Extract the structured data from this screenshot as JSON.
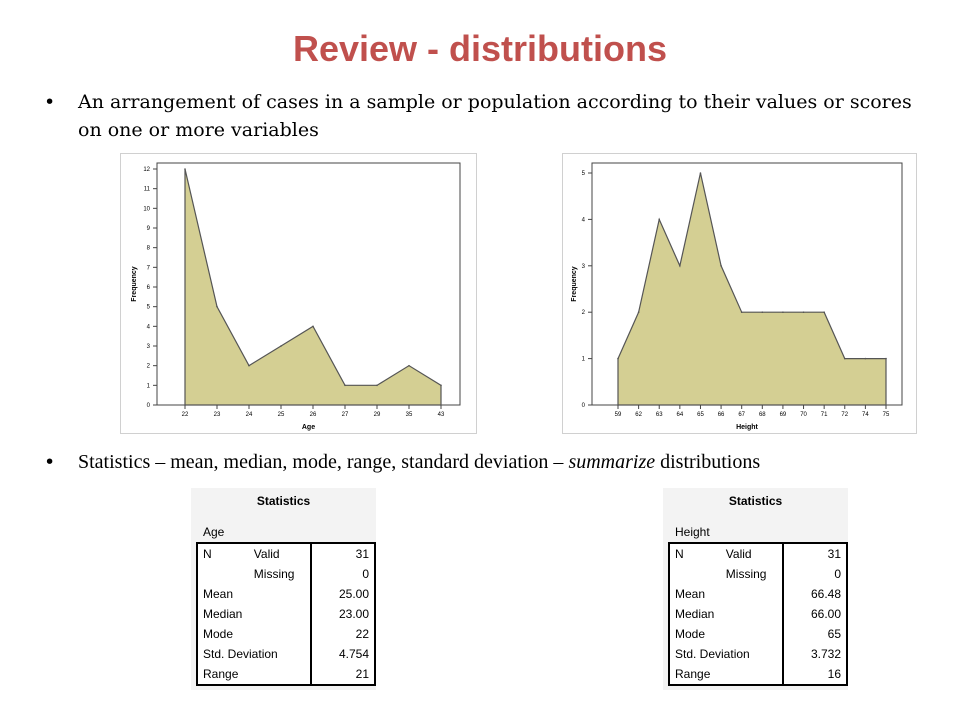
{
  "slide": {
    "title": "Review - distributions",
    "bullet1": "An arrangement of cases in a sample or population according to their values or scores on one or more variables",
    "bullet2_pre": "Statistics – mean, median, mode, range, standard deviation – ",
    "bullet2_em": "summarize",
    "bullet2_post": " distributions",
    "bullet_symbol": "•"
  },
  "chart_data": [
    {
      "type": "area",
      "xlabel": "Age",
      "ylabel": "Frequency",
      "categories": [
        "22",
        "23",
        "24",
        "25",
        "26",
        "27",
        "29",
        "35",
        "43"
      ],
      "values": [
        12,
        5,
        2,
        3,
        4,
        1,
        1,
        2,
        1
      ],
      "ylim": [
        0,
        12
      ],
      "yticks": [
        0,
        1,
        2,
        3,
        4,
        5,
        6,
        7,
        8,
        9,
        10,
        11,
        12
      ],
      "fill": "#d4cf93",
      "grid": false
    },
    {
      "type": "area",
      "xlabel": "Height",
      "ylabel": "Frequency",
      "categories": [
        "59",
        "62",
        "63",
        "64",
        "65",
        "66",
        "67",
        "68",
        "69",
        "70",
        "71",
        "72",
        "74",
        "75"
      ],
      "values": [
        1,
        2,
        4,
        3,
        5,
        3,
        2,
        2,
        2,
        2,
        2,
        1,
        1,
        1
      ],
      "ylim": [
        0,
        5
      ],
      "yticks": [
        0,
        1,
        2,
        3,
        4,
        5
      ],
      "fill": "#d4cf93",
      "grid": false
    }
  ],
  "stats_age": {
    "title": "Statistics",
    "variable": "Age",
    "rows": [
      {
        "c1": "N",
        "c2": "Valid",
        "c3": "31"
      },
      {
        "c1": "",
        "c2": "Missing",
        "c3": "0"
      },
      {
        "c1": "Mean",
        "c2": "",
        "c3": "25.00"
      },
      {
        "c1": "Median",
        "c2": "",
        "c3": "23.00"
      },
      {
        "c1": "Mode",
        "c2": "",
        "c3": "22"
      },
      {
        "c1": "Std. Deviation",
        "c2": "",
        "c3": "4.754"
      },
      {
        "c1": "Range",
        "c2": "",
        "c3": "21"
      }
    ]
  },
  "stats_height": {
    "title": "Statistics",
    "variable": "Height",
    "rows": [
      {
        "c1": "N",
        "c2": "Valid",
        "c3": "31"
      },
      {
        "c1": "",
        "c2": "Missing",
        "c3": "0"
      },
      {
        "c1": "Mean",
        "c2": "",
        "c3": "66.48"
      },
      {
        "c1": "Median",
        "c2": "",
        "c3": "66.00"
      },
      {
        "c1": "Mode",
        "c2": "",
        "c3": "65"
      },
      {
        "c1": "Std. Deviation",
        "c2": "",
        "c3": "3.732"
      },
      {
        "c1": "Range",
        "c2": "",
        "c3": "16"
      }
    ]
  }
}
